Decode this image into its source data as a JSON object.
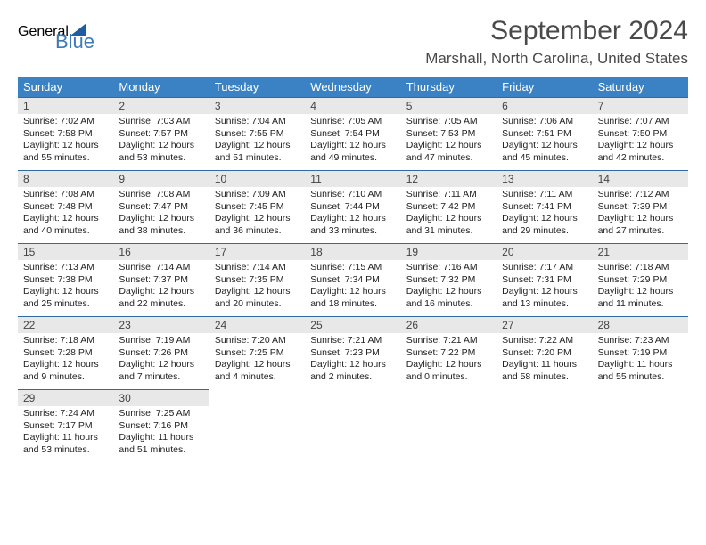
{
  "logo": {
    "word1": "General",
    "word2": "Blue"
  },
  "title": "September 2024",
  "location": "Marshall, North Carolina, United States",
  "colors": {
    "header_bg": "#3a82c4",
    "border": "#2f6aa3",
    "daynum_bg": "#e8e8e8",
    "text": "#222222",
    "title_text": "#4a4a4a"
  },
  "weekdays": [
    "Sunday",
    "Monday",
    "Tuesday",
    "Wednesday",
    "Thursday",
    "Friday",
    "Saturday"
  ],
  "days": [
    {
      "n": 1,
      "sunrise": "7:02 AM",
      "sunset": "7:58 PM",
      "dh": 12,
      "dm": 55
    },
    {
      "n": 2,
      "sunrise": "7:03 AM",
      "sunset": "7:57 PM",
      "dh": 12,
      "dm": 53
    },
    {
      "n": 3,
      "sunrise": "7:04 AM",
      "sunset": "7:55 PM",
      "dh": 12,
      "dm": 51
    },
    {
      "n": 4,
      "sunrise": "7:05 AM",
      "sunset": "7:54 PM",
      "dh": 12,
      "dm": 49
    },
    {
      "n": 5,
      "sunrise": "7:05 AM",
      "sunset": "7:53 PM",
      "dh": 12,
      "dm": 47
    },
    {
      "n": 6,
      "sunrise": "7:06 AM",
      "sunset": "7:51 PM",
      "dh": 12,
      "dm": 45
    },
    {
      "n": 7,
      "sunrise": "7:07 AM",
      "sunset": "7:50 PM",
      "dh": 12,
      "dm": 42
    },
    {
      "n": 8,
      "sunrise": "7:08 AM",
      "sunset": "7:48 PM",
      "dh": 12,
      "dm": 40
    },
    {
      "n": 9,
      "sunrise": "7:08 AM",
      "sunset": "7:47 PM",
      "dh": 12,
      "dm": 38
    },
    {
      "n": 10,
      "sunrise": "7:09 AM",
      "sunset": "7:45 PM",
      "dh": 12,
      "dm": 36
    },
    {
      "n": 11,
      "sunrise": "7:10 AM",
      "sunset": "7:44 PM",
      "dh": 12,
      "dm": 33
    },
    {
      "n": 12,
      "sunrise": "7:11 AM",
      "sunset": "7:42 PM",
      "dh": 12,
      "dm": 31
    },
    {
      "n": 13,
      "sunrise": "7:11 AM",
      "sunset": "7:41 PM",
      "dh": 12,
      "dm": 29
    },
    {
      "n": 14,
      "sunrise": "7:12 AM",
      "sunset": "7:39 PM",
      "dh": 12,
      "dm": 27
    },
    {
      "n": 15,
      "sunrise": "7:13 AM",
      "sunset": "7:38 PM",
      "dh": 12,
      "dm": 25
    },
    {
      "n": 16,
      "sunrise": "7:14 AM",
      "sunset": "7:37 PM",
      "dh": 12,
      "dm": 22
    },
    {
      "n": 17,
      "sunrise": "7:14 AM",
      "sunset": "7:35 PM",
      "dh": 12,
      "dm": 20
    },
    {
      "n": 18,
      "sunrise": "7:15 AM",
      "sunset": "7:34 PM",
      "dh": 12,
      "dm": 18
    },
    {
      "n": 19,
      "sunrise": "7:16 AM",
      "sunset": "7:32 PM",
      "dh": 12,
      "dm": 16
    },
    {
      "n": 20,
      "sunrise": "7:17 AM",
      "sunset": "7:31 PM",
      "dh": 12,
      "dm": 13
    },
    {
      "n": 21,
      "sunrise": "7:18 AM",
      "sunset": "7:29 PM",
      "dh": 12,
      "dm": 11
    },
    {
      "n": 22,
      "sunrise": "7:18 AM",
      "sunset": "7:28 PM",
      "dh": 12,
      "dm": 9
    },
    {
      "n": 23,
      "sunrise": "7:19 AM",
      "sunset": "7:26 PM",
      "dh": 12,
      "dm": 7
    },
    {
      "n": 24,
      "sunrise": "7:20 AM",
      "sunset": "7:25 PM",
      "dh": 12,
      "dm": 4
    },
    {
      "n": 25,
      "sunrise": "7:21 AM",
      "sunset": "7:23 PM",
      "dh": 12,
      "dm": 2
    },
    {
      "n": 26,
      "sunrise": "7:21 AM",
      "sunset": "7:22 PM",
      "dh": 12,
      "dm": 0
    },
    {
      "n": 27,
      "sunrise": "7:22 AM",
      "sunset": "7:20 PM",
      "dh": 11,
      "dm": 58
    },
    {
      "n": 28,
      "sunrise": "7:23 AM",
      "sunset": "7:19 PM",
      "dh": 11,
      "dm": 55
    },
    {
      "n": 29,
      "sunrise": "7:24 AM",
      "sunset": "7:17 PM",
      "dh": 11,
      "dm": 53
    },
    {
      "n": 30,
      "sunrise": "7:25 AM",
      "sunset": "7:16 PM",
      "dh": 11,
      "dm": 51
    }
  ],
  "labels": {
    "sunrise": "Sunrise:",
    "sunset": "Sunset:",
    "daylight_prefix": "Daylight:",
    "hours_word": "hours",
    "and_word": "and",
    "minutes_word": "minutes."
  },
  "start_weekday_index": 0
}
